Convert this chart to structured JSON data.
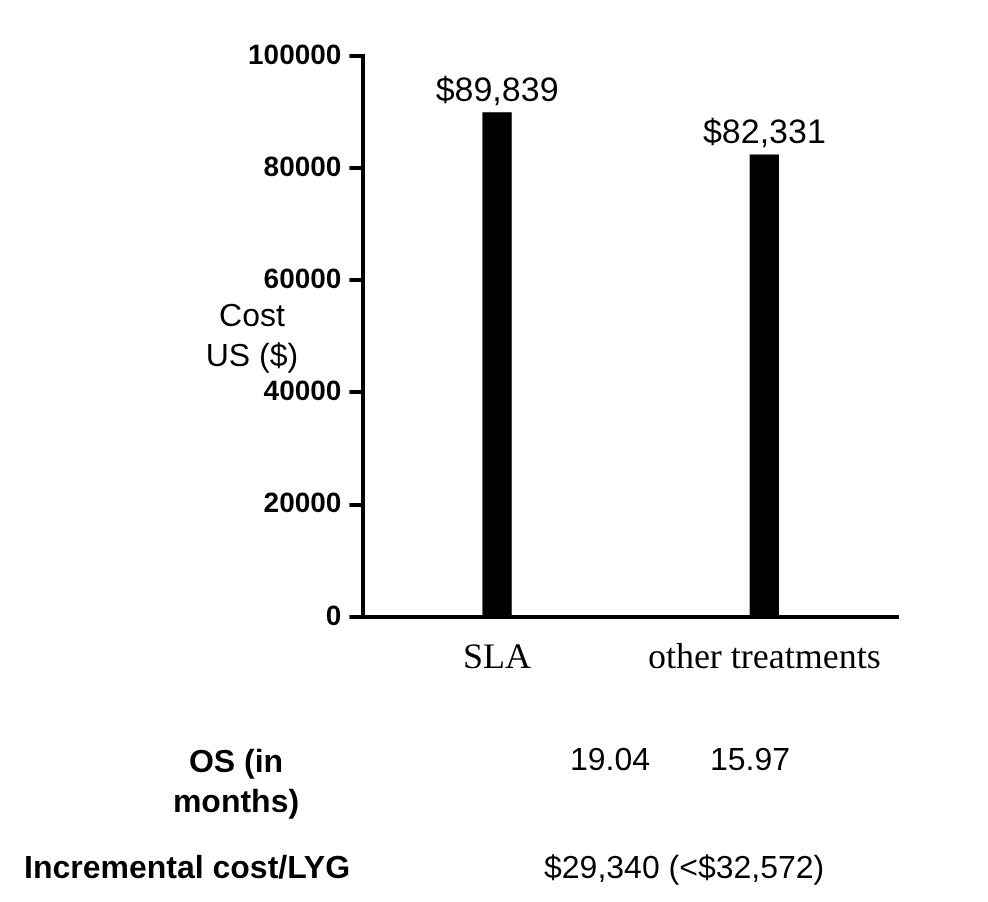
{
  "chart_data": {
    "type": "bar",
    "ylabel": "Cost US ($)",
    "categories": [
      "SLA",
      "other treatments"
    ],
    "values": [
      89839,
      82331
    ],
    "value_labels": [
      "$89,839",
      "$82,331"
    ],
    "color": "#000000",
    "ylim": [
      0,
      100000
    ],
    "yticks": [
      0,
      20000,
      40000,
      60000,
      80000,
      100000
    ],
    "grid": false,
    "legend": false,
    "annotations": [
      "OS (in months)",
      "19.04",
      "15.97",
      "Incremental cost/LYG",
      "$29,340 (<$32,572)"
    ]
  }
}
